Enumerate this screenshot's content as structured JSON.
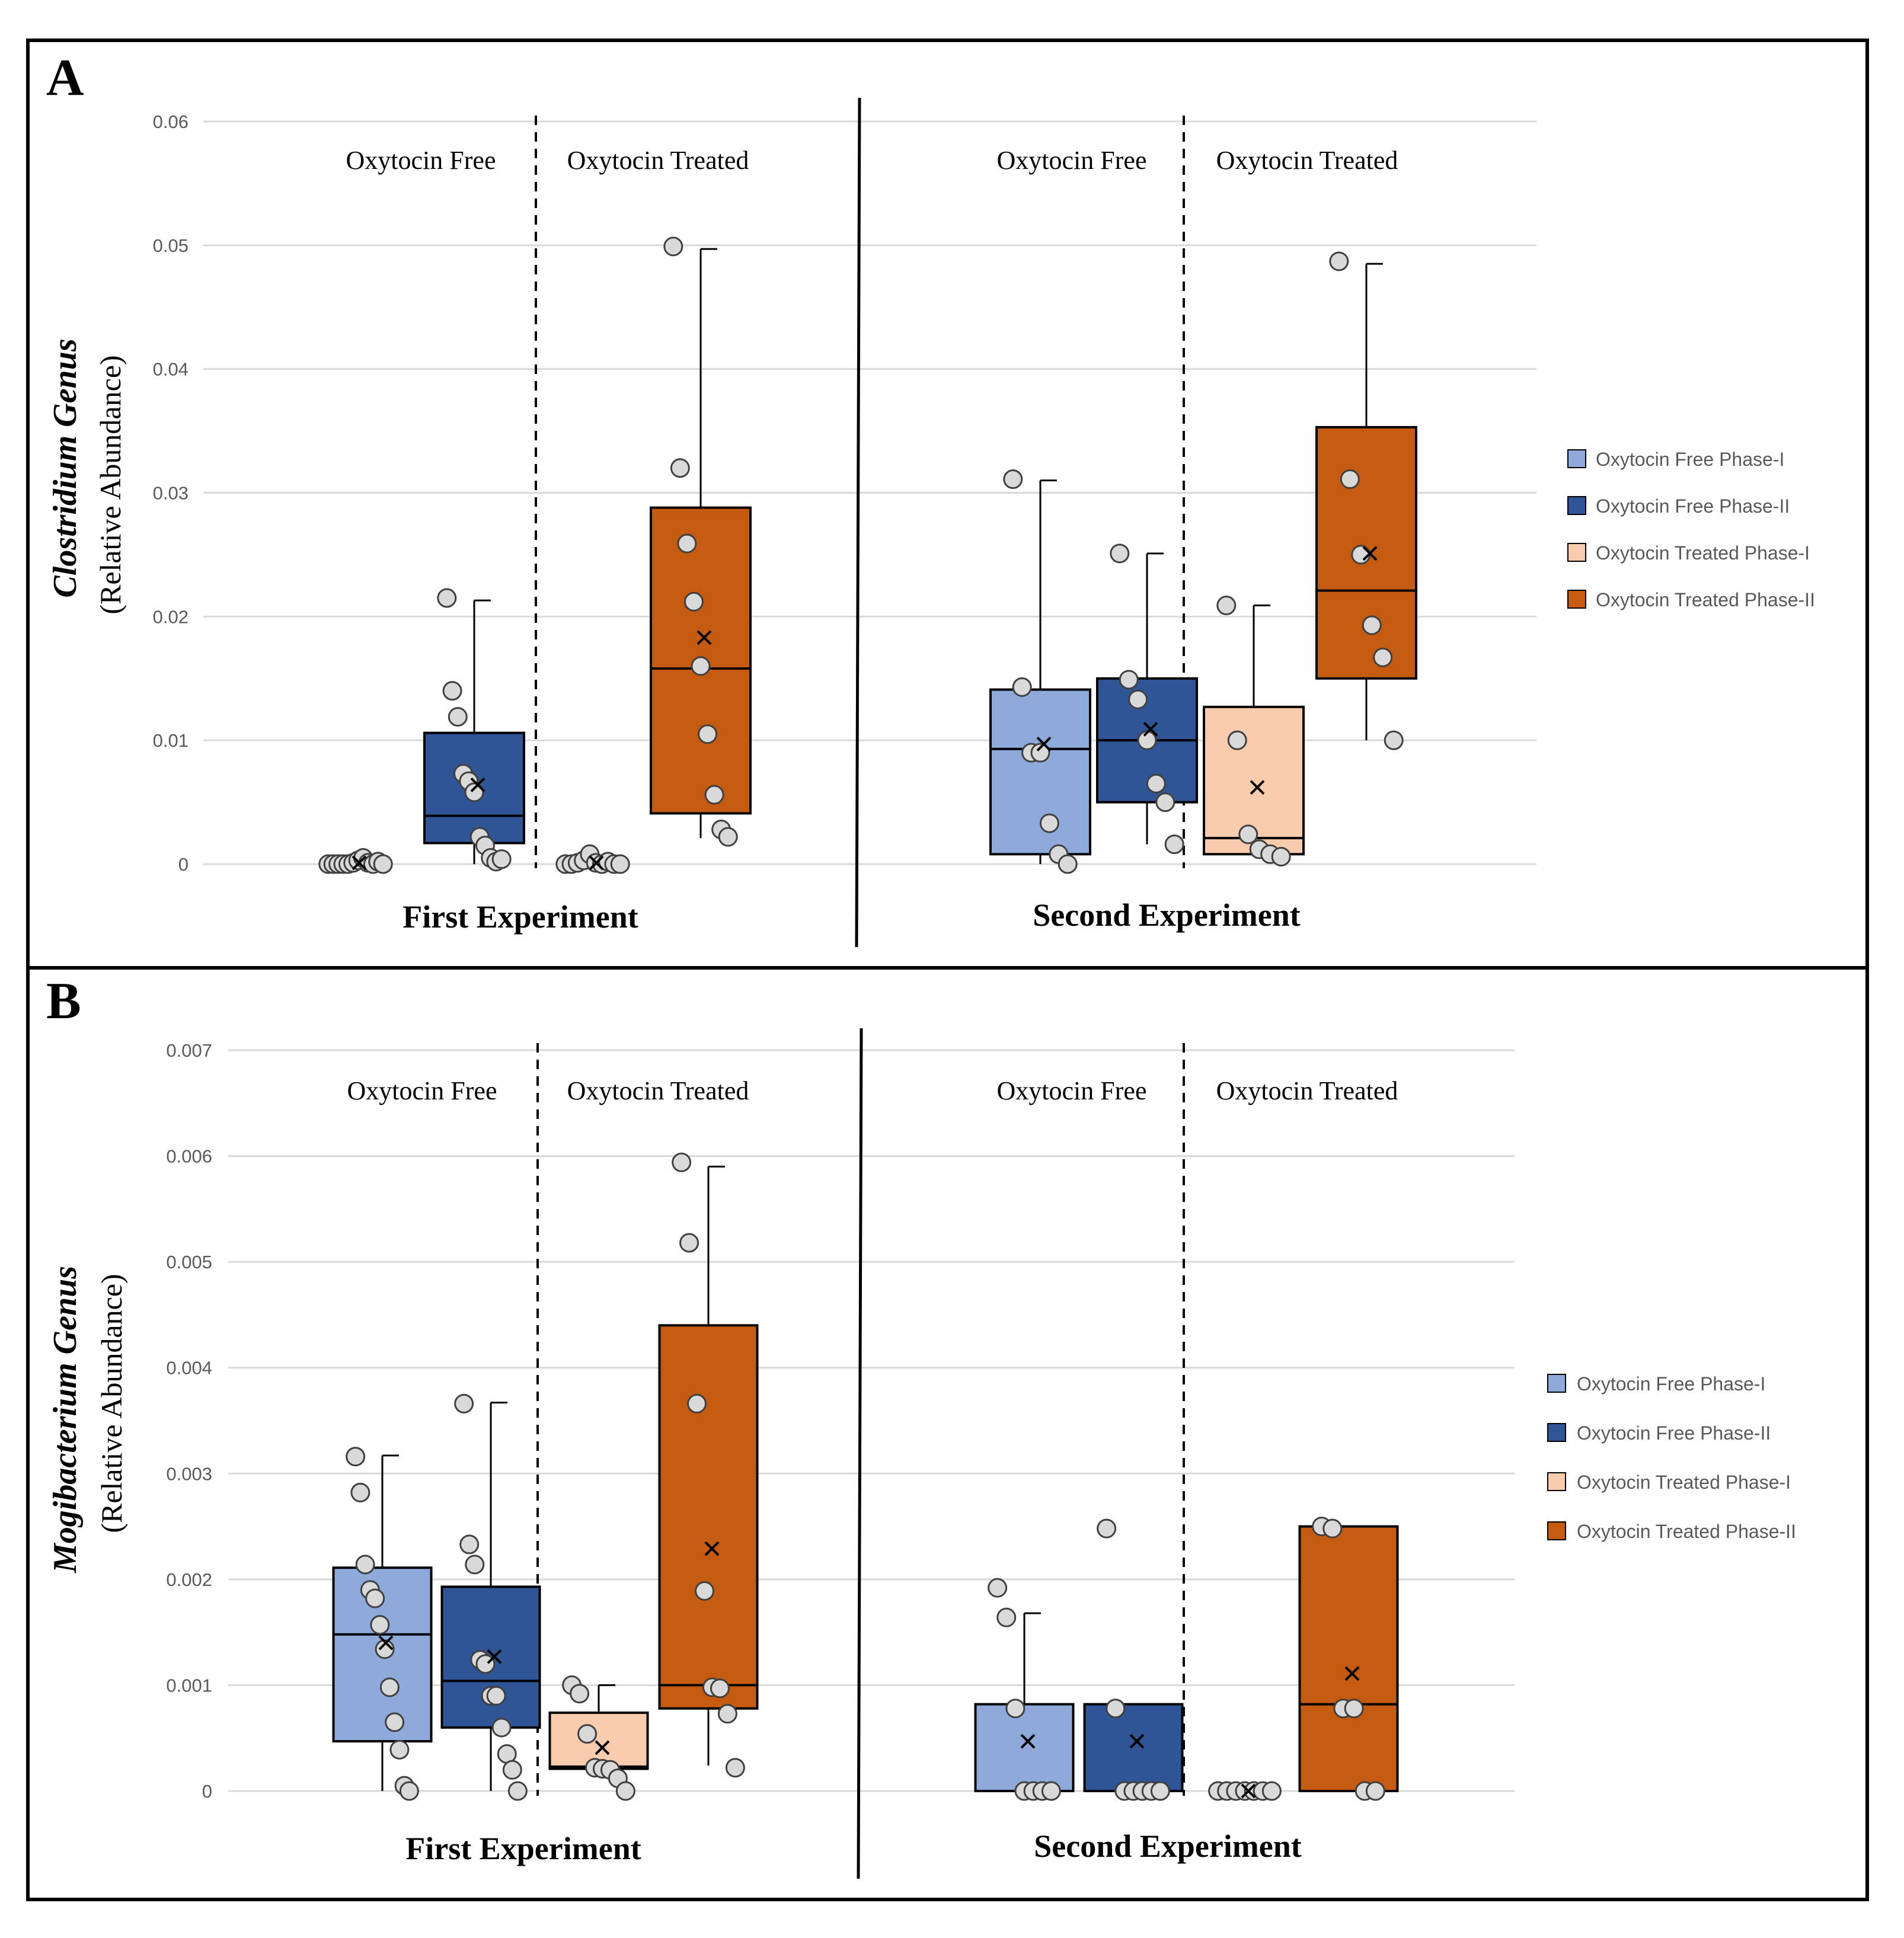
{
  "series_colors": {
    "free_p1": "#8EAADB",
    "free_p2": "#2F5597",
    "treated_p1": "#F8CBAD",
    "treated_p2": "#C55A11"
  },
  "chart_data": [
    {
      "panel": "A",
      "type": "boxplot",
      "ylabel": "Clostridium Genus",
      "ylabel_sub": "(Relative  Abundance)",
      "ylim": [
        0,
        0.06
      ],
      "yticks": [
        "0",
        "0.01",
        "0.02",
        "0.03",
        "0.04",
        "0.05",
        "0.06"
      ],
      "ytick_values": [
        0,
        0.01,
        0.02,
        0.03,
        0.04,
        0.05,
        0.06
      ],
      "section_labels": [
        "Oxytocin Free",
        "Oxytocin Treated",
        "Oxytocin Free",
        "Oxytocin Treated"
      ],
      "experiments": [
        "First Experiment",
        "Second Experiment"
      ],
      "legend": [
        "Oxytocin Free Phase-I",
        "Oxytocin Free Phase-II",
        "Oxytocin Treated Phase-I",
        "Oxytocin Treated Phase-II"
      ],
      "groups": [
        {
          "series": "Oxytocin Free Phase-I",
          "experiment": 1,
          "color_key": "free_p1",
          "q1": 0,
          "median": 0,
          "q3": 0,
          "whisker_low": 0,
          "whisker_high": 0,
          "mean": 0.0001,
          "points": [
            0,
            0,
            0,
            0,
            0,
            0.0001,
            0.0003,
            0.0005,
            0.0001,
            0,
            0.0002,
            0
          ]
        },
        {
          "series": "Oxytocin Free Phase-II",
          "experiment": 1,
          "color_key": "free_p2",
          "q1": 0.0017,
          "median": 0.0039,
          "q3": 0.0106,
          "whisker_low": 0,
          "whisker_high": 0.0213,
          "mean": 0.0064,
          "points": [
            0.0215,
            0.014,
            0.0119,
            0.0073,
            0.0067,
            0.0058,
            0.0022,
            0.0015,
            0.0005,
            0.0002,
            0.0004
          ]
        },
        {
          "series": "Oxytocin Treated Phase-I",
          "experiment": 1,
          "color_key": "treated_p1",
          "q1": 0,
          "median": 0,
          "q3": 0,
          "whisker_low": 0,
          "whisker_high": 0,
          "mean": 0.0001,
          "points": [
            0,
            0,
            0.0001,
            0.0003,
            0.0008,
            0.0001,
            0,
            0.0002,
            0,
            0
          ]
        },
        {
          "series": "Oxytocin Treated Phase-II",
          "experiment": 1,
          "color_key": "treated_p2",
          "q1": 0.0041,
          "median": 0.0158,
          "q3": 0.0288,
          "whisker_low": 0.0021,
          "whisker_high": 0.0497,
          "mean": 0.0183,
          "points": [
            0.0499,
            0.032,
            0.0259,
            0.0212,
            0.016,
            0.0105,
            0.0056,
            0.0028,
            0.0022
          ]
        },
        {
          "series": "Oxytocin Free Phase-I",
          "experiment": 2,
          "color_key": "free_p1",
          "q1": 0.0008,
          "median": 0.0093,
          "q3": 0.0141,
          "whisker_low": 0,
          "whisker_high": 0.031,
          "mean": 0.0097,
          "points": [
            0.0311,
            0.0143,
            0.009,
            0.009,
            0.0033,
            0.0008,
            0
          ]
        },
        {
          "series": "Oxytocin Free Phase-II",
          "experiment": 2,
          "color_key": "free_p2",
          "q1": 0.005,
          "median": 0.01,
          "q3": 0.015,
          "whisker_low": 0.0016,
          "whisker_high": 0.0251,
          "mean": 0.0109,
          "points": [
            0.0251,
            0.0149,
            0.0133,
            0.01,
            0.0065,
            0.005,
            0.0016
          ]
        },
        {
          "series": "Oxytocin Treated Phase-I",
          "experiment": 2,
          "color_key": "treated_p1",
          "q1": 0.0008,
          "median": 0.0021,
          "q3": 0.0127,
          "whisker_low": 0.0006,
          "whisker_high": 0.0209,
          "mean": 0.0062,
          "points": [
            0.0209,
            0.01,
            0.0024,
            0.0012,
            0.0008,
            0.0006
          ]
        },
        {
          "series": "Oxytocin Treated Phase-II",
          "experiment": 2,
          "color_key": "treated_p2",
          "q1": 0.015,
          "median": 0.0221,
          "q3": 0.0353,
          "whisker_low": 0.01,
          "whisker_high": 0.0485,
          "mean": 0.0251,
          "points": [
            0.0487,
            0.0311,
            0.025,
            0.0193,
            0.0167,
            0.01
          ]
        }
      ]
    },
    {
      "panel": "B",
      "type": "boxplot",
      "ylabel": "Mogibacterium Genus",
      "ylabel_sub": "(Relative  Abundance)",
      "ylim": [
        0,
        0.007
      ],
      "yticks": [
        "0",
        "0.001",
        "0.002",
        "0.003",
        "0.004",
        "0.005",
        "0.006",
        "0.007"
      ],
      "ytick_values": [
        0,
        0.001,
        0.002,
        0.003,
        0.004,
        0.005,
        0.006,
        0.007
      ],
      "section_labels": [
        "Oxytocin Free",
        "Oxytocin Treated",
        "Oxytocin Free",
        "Oxytocin Treated"
      ],
      "experiments": [
        "First Experiment",
        "Second Experiment"
      ],
      "legend": [
        "Oxytocin Free Phase-I",
        "Oxytocin Free Phase-II",
        "Oxytocin Treated Phase-I",
        "Oxytocin Treated Phase-II"
      ],
      "groups": [
        {
          "series": "Oxytocin Free Phase-I",
          "experiment": 1,
          "color_key": "free_p1",
          "q1": 0.00047,
          "median": 0.00148,
          "q3": 0.00211,
          "whisker_low": 0,
          "whisker_high": 0.00317,
          "mean": 0.0014,
          "points": [
            0.00316,
            0.00282,
            0.00214,
            0.0019,
            0.00182,
            0.00157,
            0.00134,
            0.00098,
            0.00065,
            0.00039,
            5e-05,
            0
          ]
        },
        {
          "series": "Oxytocin Free Phase-II",
          "experiment": 1,
          "color_key": "free_p2",
          "q1": 0.0006,
          "median": 0.00104,
          "q3": 0.00193,
          "whisker_low": 0,
          "whisker_high": 0.00367,
          "mean": 0.00127,
          "points": [
            0.00366,
            0.00233,
            0.00214,
            0.00124,
            0.0012,
            0.0009,
            0.0009,
            0.0006,
            0.00035,
            0.0002,
            0
          ]
        },
        {
          "series": "Oxytocin Treated Phase-I",
          "experiment": 1,
          "color_key": "treated_p1",
          "q1": 0.00021,
          "median": 0.00023,
          "q3": 0.00074,
          "whisker_low": 0.0002,
          "whisker_high": 0.001,
          "mean": 0.00041,
          "points": [
            0.001,
            0.00092,
            0.00054,
            0.00022,
            0.00021,
            0.0002,
            0.00012,
            0
          ]
        },
        {
          "series": "Oxytocin Treated Phase-II",
          "experiment": 1,
          "color_key": "treated_p2",
          "q1": 0.00078,
          "median": 0.001,
          "q3": 0.0044,
          "whisker_low": 0.00024,
          "whisker_high": 0.0059,
          "mean": 0.00229,
          "points": [
            0.00594,
            0.00518,
            0.00366,
            0.00189,
            0.00098,
            0.00097,
            0.00073,
            0.00022
          ]
        },
        {
          "series": "Oxytocin Free Phase-I",
          "experiment": 2,
          "color_key": "free_p1",
          "q1": 0,
          "median": 0,
          "q3": 0.00082,
          "whisker_low": 0,
          "whisker_high": 0.00168,
          "mean": 0.00047,
          "points": [
            0.00192,
            0.00164,
            0.00078,
            0,
            0,
            0,
            0
          ]
        },
        {
          "series": "Oxytocin Free Phase-II",
          "experiment": 2,
          "color_key": "free_p2",
          "q1": 0,
          "median": 0,
          "q3": 0.00082,
          "whisker_low": 0,
          "whisker_high": 0.00082,
          "mean": 0.00047,
          "points": [
            0.00248,
            0.00078,
            0,
            0,
            0,
            0,
            0
          ]
        },
        {
          "series": "Oxytocin Treated Phase-I",
          "experiment": 2,
          "color_key": "treated_p1",
          "q1": 0,
          "median": 0,
          "q3": 0,
          "whisker_low": 0,
          "whisker_high": 0,
          "mean": 0,
          "points": [
            0,
            0,
            0,
            0,
            0,
            0,
            0
          ]
        },
        {
          "series": "Oxytocin Treated Phase-II",
          "experiment": 2,
          "color_key": "treated_p2",
          "q1": 0,
          "median": 0.00082,
          "q3": 0.0025,
          "whisker_low": 0,
          "whisker_high": 0.0025,
          "mean": 0.00111,
          "points": [
            0.0025,
            0.00248,
            0.00078,
            0.00078,
            0,
            0
          ]
        }
      ]
    }
  ]
}
